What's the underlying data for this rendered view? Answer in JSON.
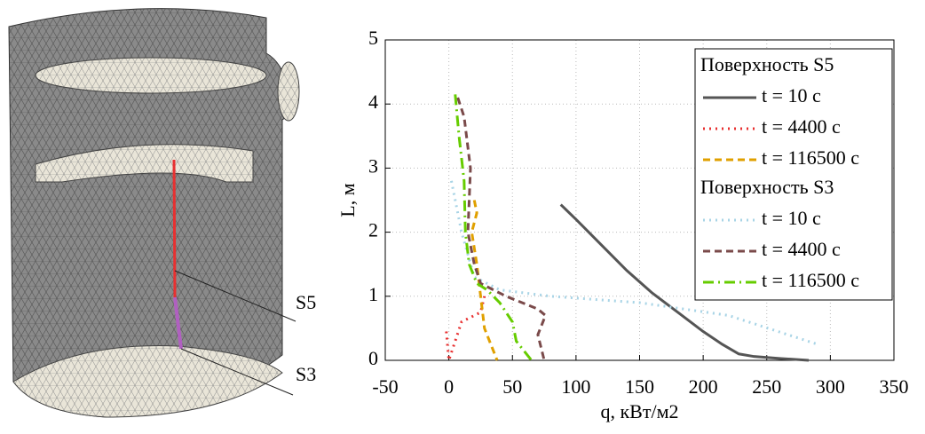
{
  "image_labels": [
    "S5",
    "S3"
  ],
  "chart_data": {
    "type": "line",
    "xlabel": "q, кВт/м2",
    "ylabel": "L, м",
    "xlim": [
      -50,
      350
    ],
    "xticks": [
      -50,
      0,
      50,
      100,
      150,
      200,
      250,
      300,
      350
    ],
    "ylim": [
      0,
      5
    ],
    "yticks": [
      0,
      1,
      2,
      3,
      4,
      5
    ],
    "grid": true,
    "legend": "upper right",
    "series_groups": [
      {
        "name": "Поверхность S5",
        "series": [
          {
            "name": "t = 10 с",
            "color": "#555555",
            "style": "solid",
            "x": [
              88,
              100,
              120,
              140,
              160,
              180,
              200,
              215,
              228,
              240,
              260,
              283
            ],
            "values": [
              2.43,
              2.2,
              1.8,
              1.4,
              1.05,
              0.75,
              0.45,
              0.25,
              0.1,
              0.06,
              0.03,
              0
            ]
          },
          {
            "name": "t = 4400 с",
            "color": "#e83030",
            "style": "dot",
            "x": [
              -2,
              0,
              10,
              20,
              25,
              28
            ],
            "values": [
              0.45,
              0,
              0.6,
              0.7,
              0.75,
              1.0
            ]
          },
          {
            "name": "t = 116500 с",
            "color": "#e0a000",
            "style": "dash",
            "x": [
              20,
              22,
              18,
              22,
              25,
              28,
              35,
              38
            ],
            "values": [
              2.5,
              2.3,
              2.0,
              1.5,
              1.0,
              0.5,
              0.15,
              0
            ]
          }
        ]
      },
      {
        "name": "Поверхность S3",
        "series": [
          {
            "name": "t = 10 с",
            "color": "#a8d4e6",
            "style": "dot",
            "x": [
              2,
              10,
              20,
              40,
              80,
              150,
              220,
              290
            ],
            "values": [
              2.8,
              2.0,
              1.3,
              1.1,
              1.0,
              0.9,
              0.7,
              0.25
            ]
          },
          {
            "name": "t = 4400 с",
            "color": "#7a4a4a",
            "style": "dash",
            "x": [
              7,
              12,
              17,
              15,
              20,
              25,
              45,
              70,
              76,
              70,
              75
            ],
            "values": [
              4.1,
              3.8,
              3.0,
              2.0,
              1.5,
              1.2,
              1.0,
              0.8,
              0.7,
              0.4,
              0
            ]
          },
          {
            "name": "t = 116500 с",
            "color": "#66cc00",
            "style": "dashdot",
            "x": [
              5,
              8,
              12,
              13,
              16,
              22,
              30,
              40,
              50,
              53,
              65
            ],
            "values": [
              4.15,
              3.5,
              2.8,
              2.0,
              1.5,
              1.2,
              1.1,
              0.9,
              0.6,
              0.3,
              0
            ]
          }
        ]
      }
    ]
  }
}
